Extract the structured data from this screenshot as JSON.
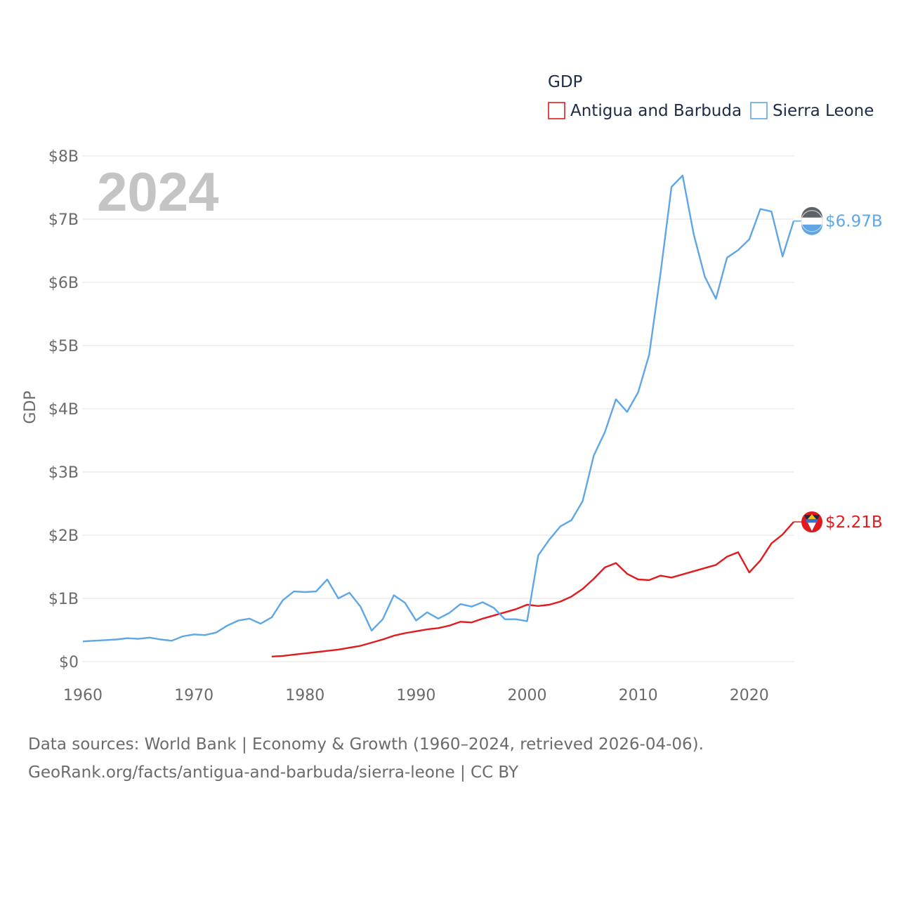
{
  "chart_data": {
    "type": "line",
    "title": "GDP",
    "year_watermark": "2024",
    "ylabel": "GDP",
    "xlabel": "",
    "xlim": [
      1960,
      2024
    ],
    "ylim": [
      0,
      8
    ],
    "x_ticks": [
      1960,
      1970,
      1980,
      1990,
      2000,
      2010,
      2020
    ],
    "y_ticks": [
      {
        "value": 0,
        "label": "$0"
      },
      {
        "value": 1,
        "label": "$1B"
      },
      {
        "value": 2,
        "label": "$2B"
      },
      {
        "value": 3,
        "label": "$3B"
      },
      {
        "value": 4,
        "label": "$4B"
      },
      {
        "value": 5,
        "label": "$5B"
      },
      {
        "value": 6,
        "label": "$6B"
      },
      {
        "value": 7,
        "label": "$7B"
      },
      {
        "value": 8,
        "label": "$8B"
      }
    ],
    "grid": true,
    "legend_position": "top-right",
    "units": "billions USD",
    "series": [
      {
        "name": "Antigua and Barbuda",
        "color": "#e31a1c",
        "end_label": "$2.21B",
        "flag": "antigua-and-barbuda-flag",
        "x": [
          1977,
          1978,
          1979,
          1980,
          1981,
          1982,
          1983,
          1984,
          1985,
          1986,
          1987,
          1988,
          1989,
          1990,
          1991,
          1992,
          1993,
          1994,
          1995,
          1996,
          1997,
          1998,
          1999,
          2000,
          2001,
          2002,
          2003,
          2004,
          2005,
          2006,
          2007,
          2008,
          2009,
          2010,
          2011,
          2012,
          2013,
          2014,
          2015,
          2016,
          2017,
          2018,
          2019,
          2020,
          2021,
          2022,
          2023,
          2024
        ],
        "values": [
          0.08,
          0.09,
          0.11,
          0.13,
          0.15,
          0.17,
          0.19,
          0.22,
          0.25,
          0.3,
          0.35,
          0.41,
          0.45,
          0.48,
          0.51,
          0.53,
          0.57,
          0.63,
          0.62,
          0.68,
          0.73,
          0.78,
          0.83,
          0.9,
          0.88,
          0.9,
          0.95,
          1.03,
          1.15,
          1.31,
          1.49,
          1.56,
          1.39,
          1.3,
          1.29,
          1.36,
          1.33,
          1.38,
          1.43,
          1.48,
          1.53,
          1.66,
          1.73,
          1.41,
          1.6,
          1.87,
          2.01,
          2.21
        ]
      },
      {
        "name": "Sierra Leone",
        "color": "#5ea6e6",
        "end_label": "$6.97B",
        "flag": "sierra-leone-flag",
        "x": [
          1960,
          1961,
          1962,
          1963,
          1964,
          1965,
          1966,
          1967,
          1968,
          1969,
          1970,
          1971,
          1972,
          1973,
          1974,
          1975,
          1976,
          1977,
          1978,
          1979,
          1980,
          1981,
          1982,
          1983,
          1984,
          1985,
          1986,
          1987,
          1988,
          1989,
          1990,
          1991,
          1992,
          1993,
          1994,
          1995,
          1996,
          1997,
          1998,
          1999,
          2000,
          2001,
          2002,
          2003,
          2004,
          2005,
          2006,
          2007,
          2008,
          2009,
          2010,
          2011,
          2012,
          2013,
          2014,
          2015,
          2016,
          2017,
          2018,
          2019,
          2020,
          2021,
          2022,
          2023,
          2024
        ],
        "values": [
          0.32,
          0.33,
          0.34,
          0.35,
          0.37,
          0.36,
          0.38,
          0.35,
          0.33,
          0.4,
          0.43,
          0.42,
          0.46,
          0.57,
          0.65,
          0.68,
          0.6,
          0.7,
          0.97,
          1.11,
          1.1,
          1.11,
          1.3,
          1.0,
          1.09,
          0.87,
          0.49,
          0.67,
          1.05,
          0.93,
          0.65,
          0.78,
          0.68,
          0.77,
          0.91,
          0.87,
          0.94,
          0.85,
          0.67,
          0.67,
          0.64,
          1.68,
          1.93,
          2.14,
          2.24,
          2.54,
          3.26,
          3.63,
          4.15,
          3.95,
          4.26,
          4.86,
          6.13,
          7.51,
          7.69,
          6.76,
          6.09,
          5.74,
          6.39,
          6.51,
          6.68,
          7.16,
          7.12,
          6.41,
          6.97
        ]
      }
    ]
  },
  "footer": {
    "line1": "Data sources: World Bank | Economy & Growth (1960–2024, retrieved 2026-04-06).",
    "line2": "GeoRank.org/facts/antigua-and-barbuda/sierra-leone | CC BY"
  }
}
